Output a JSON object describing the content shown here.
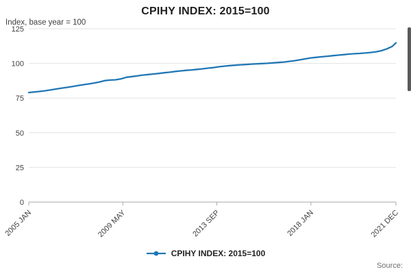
{
  "header": {
    "title": "CPIHY INDEX: 2015=100"
  },
  "axes": {
    "y_title": "Index, base year = 100"
  },
  "legend": {
    "label": "CPIHY INDEX: 2015=100"
  },
  "footer": {
    "source_label": "Source:"
  },
  "colors": {
    "series": "#2077b4",
    "grid": "#e2e2e2",
    "axis": "#a8a8a8",
    "tick_text": "#414042"
  },
  "chart_data": {
    "type": "line",
    "title": "CPIHY INDEX: 2015=100",
    "ylabel": "Index, base year = 100",
    "x_unit": "months since 2005 JAN",
    "xlim": [
      0,
      203
    ],
    "ylim": [
      0,
      125
    ],
    "y_ticks": [
      0,
      25,
      50,
      75,
      100,
      125
    ],
    "x_ticks": [
      {
        "t": 0,
        "label": "2005 JAN"
      },
      {
        "t": 52,
        "label": "2009 MAY"
      },
      {
        "t": 104,
        "label": "2013 SEP"
      },
      {
        "t": 156,
        "label": "2018 JAN"
      },
      {
        "t": 203,
        "label": "2021 DEC"
      }
    ],
    "grid": "horizontal",
    "legend_position": "bottom",
    "series": [
      {
        "name": "CPIHY INDEX: 2015=100",
        "color": "#2077b4",
        "t": [
          0,
          3,
          6,
          9,
          12,
          15,
          18,
          21,
          24,
          27,
          30,
          33,
          36,
          39,
          42,
          45,
          48,
          51,
          54,
          57,
          60,
          63,
          66,
          69,
          72,
          75,
          78,
          81,
          84,
          87,
          90,
          93,
          96,
          99,
          102,
          105,
          108,
          111,
          114,
          117,
          120,
          123,
          126,
          129,
          132,
          135,
          138,
          141,
          144,
          147,
          150,
          153,
          156,
          159,
          162,
          165,
          168,
          171,
          174,
          177,
          180,
          183,
          186,
          189,
          192,
          195,
          198,
          201,
          203
        ],
        "v": [
          79.0,
          79.4,
          79.8,
          80.3,
          80.9,
          81.5,
          82.1,
          82.7,
          83.3,
          84.0,
          84.6,
          85.2,
          85.8,
          86.6,
          87.6,
          88.0,
          88.2,
          88.9,
          90.0,
          90.5,
          91.0,
          91.6,
          92.0,
          92.4,
          92.8,
          93.3,
          93.7,
          94.2,
          94.6,
          95.0,
          95.3,
          95.7,
          96.1,
          96.6,
          97.0,
          97.6,
          98.0,
          98.4,
          98.7,
          99.0,
          99.2,
          99.5,
          99.7,
          99.9,
          100.1,
          100.4,
          100.7,
          101.0,
          101.5,
          102.0,
          102.6,
          103.3,
          104.0,
          104.4,
          104.8,
          105.2,
          105.6,
          106.0,
          106.3,
          106.7,
          107.0,
          107.2,
          107.5,
          107.9,
          108.4,
          109.2,
          110.5,
          112.3,
          114.8
        ]
      }
    ]
  }
}
